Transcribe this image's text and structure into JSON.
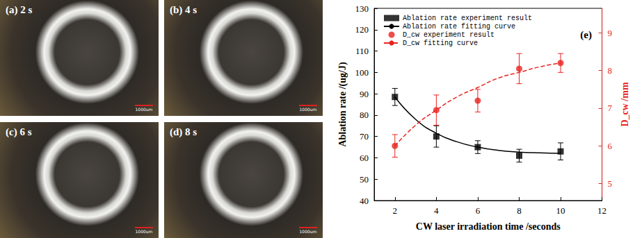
{
  "panels": [
    {
      "label": "(a) 2 s"
    },
    {
      "label": "(b) 4 s"
    },
    {
      "label": "(c) 6 s"
    },
    {
      "label": "(d) 8 s"
    }
  ],
  "scale_bar": "1000um",
  "chart_data": {
    "type": "line",
    "annotation": "(e)",
    "x_label": "CW laser irradiation time /seconds",
    "y_label": "Ablation rate /(ug/J)",
    "y2_label": "D_cw /mm",
    "xlim": [
      1,
      12
    ],
    "xticks": [
      2,
      4,
      6,
      8,
      10,
      12
    ],
    "ylim": [
      40,
      130
    ],
    "yticks": [
      40,
      50,
      60,
      70,
      80,
      90,
      100,
      110,
      120,
      130
    ],
    "y2lim": [
      4.55,
      9.65
    ],
    "y2ticks": [
      5,
      6,
      7,
      8,
      9
    ],
    "grid": false,
    "legend": "upper left",
    "series": [
      {
        "name": "Ablation rate experiment result",
        "type": "scatter",
        "marker": "square",
        "color": "#000000",
        "x": [
          2,
          4,
          6,
          8,
          10
        ],
        "values": [
          88.5,
          70,
          65,
          61,
          63
        ],
        "error": [
          4,
          5,
          3,
          3,
          4
        ]
      },
      {
        "name": "Ablation rate fitting curve",
        "type": "line",
        "line_style": "solid",
        "color": "#000000",
        "x": [
          2,
          3,
          4,
          5,
          6,
          7,
          8,
          9,
          10
        ],
        "values": [
          88.5,
          78,
          71.5,
          67.5,
          65,
          63.5,
          62.7,
          62.3,
          62.1
        ]
      },
      {
        "name": "D_cw experiment result",
        "type": "scatter",
        "marker": "circle",
        "color": "#e8231f",
        "axis": "y2",
        "x": [
          2,
          4,
          6,
          8,
          10
        ],
        "values": [
          6.0,
          6.95,
          7.2,
          8.05,
          8.2
        ],
        "error": [
          0.3,
          0.4,
          0.3,
          0.4,
          0.25
        ]
      },
      {
        "name": "D_cw fitting curve",
        "type": "line",
        "line_style": "dashed",
        "color": "#e8231f",
        "axis": "y2",
        "x": [
          2,
          3,
          4,
          5,
          6,
          7,
          8,
          9,
          10
        ],
        "values": [
          6.0,
          6.55,
          6.95,
          7.3,
          7.55,
          7.8,
          7.95,
          8.1,
          8.2
        ]
      }
    ]
  }
}
